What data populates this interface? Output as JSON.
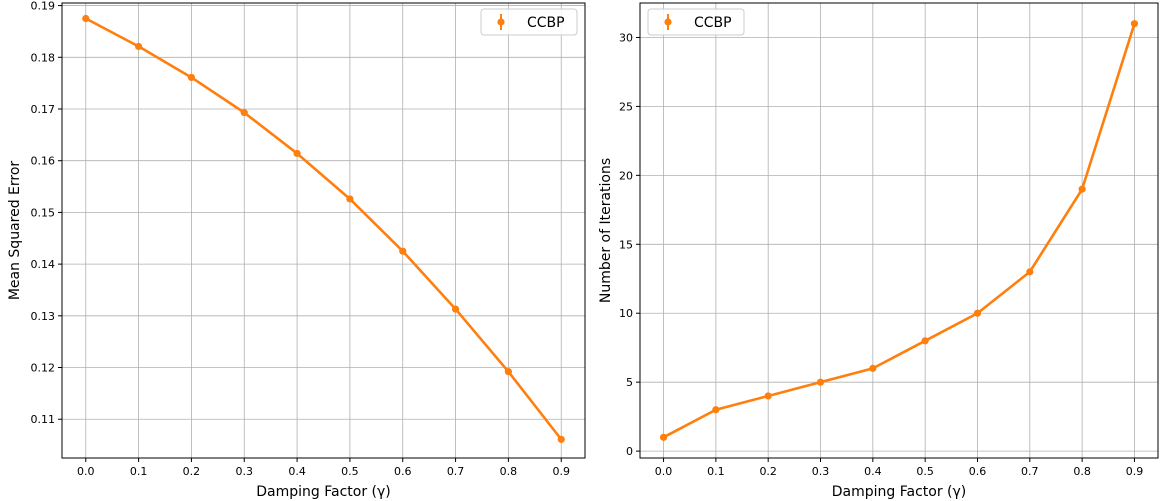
{
  "chart_data": [
    {
      "type": "line",
      "x": [
        0.0,
        0.1,
        0.2,
        0.3,
        0.4,
        0.5,
        0.6,
        0.7,
        0.8,
        0.9
      ],
      "series": [
        {
          "name": "CCBP",
          "color": "#ff7f0e",
          "values": [
            0.1875,
            0.1821,
            0.1761,
            0.1693,
            0.1614,
            0.1526,
            0.1425,
            0.1313,
            0.1192,
            0.1061
          ]
        }
      ],
      "title": "",
      "xlabel": "Damping Factor (γ)",
      "ylabel": "Mean Squared Error",
      "xlim": [
        -0.045,
        0.945
      ],
      "ylim": [
        0.1025,
        0.1905
      ],
      "xticks": [
        0.0,
        0.1,
        0.2,
        0.3,
        0.4,
        0.5,
        0.6,
        0.7,
        0.8,
        0.9
      ],
      "xtick_labels": [
        "0.0",
        "0.1",
        "0.2",
        "0.3",
        "0.4",
        "0.5",
        "0.6",
        "0.7",
        "0.8",
        "0.9"
      ],
      "yticks": [
        0.11,
        0.12,
        0.13,
        0.14,
        0.15,
        0.16,
        0.17,
        0.18,
        0.19
      ],
      "ytick_labels": [
        "0.11",
        "0.12",
        "0.13",
        "0.14",
        "0.15",
        "0.16",
        "0.17",
        "0.18",
        "0.19"
      ],
      "grid": true,
      "legend_position": "top-right",
      "legend_label": "CCBP"
    },
    {
      "type": "line",
      "x": [
        0.0,
        0.1,
        0.2,
        0.3,
        0.4,
        0.5,
        0.6,
        0.7,
        0.8,
        0.9
      ],
      "series": [
        {
          "name": "CCBP",
          "color": "#ff7f0e",
          "values": [
            1,
            3,
            4,
            5,
            6,
            8,
            10,
            13,
            19,
            31
          ]
        }
      ],
      "title": "",
      "xlabel": "Damping Factor (γ)",
      "ylabel": "Number of Iterations",
      "xlim": [
        -0.045,
        0.945
      ],
      "ylim": [
        -0.5,
        32.5
      ],
      "xticks": [
        0.0,
        0.1,
        0.2,
        0.3,
        0.4,
        0.5,
        0.6,
        0.7,
        0.8,
        0.9
      ],
      "xtick_labels": [
        "0.0",
        "0.1",
        "0.2",
        "0.3",
        "0.4",
        "0.5",
        "0.6",
        "0.7",
        "0.8",
        "0.9"
      ],
      "yticks": [
        0,
        5,
        10,
        15,
        20,
        25,
        30
      ],
      "ytick_labels": [
        "0",
        "5",
        "10",
        "15",
        "20",
        "25",
        "30"
      ],
      "grid": true,
      "legend_position": "top-left",
      "legend_label": "CCBP"
    }
  ]
}
